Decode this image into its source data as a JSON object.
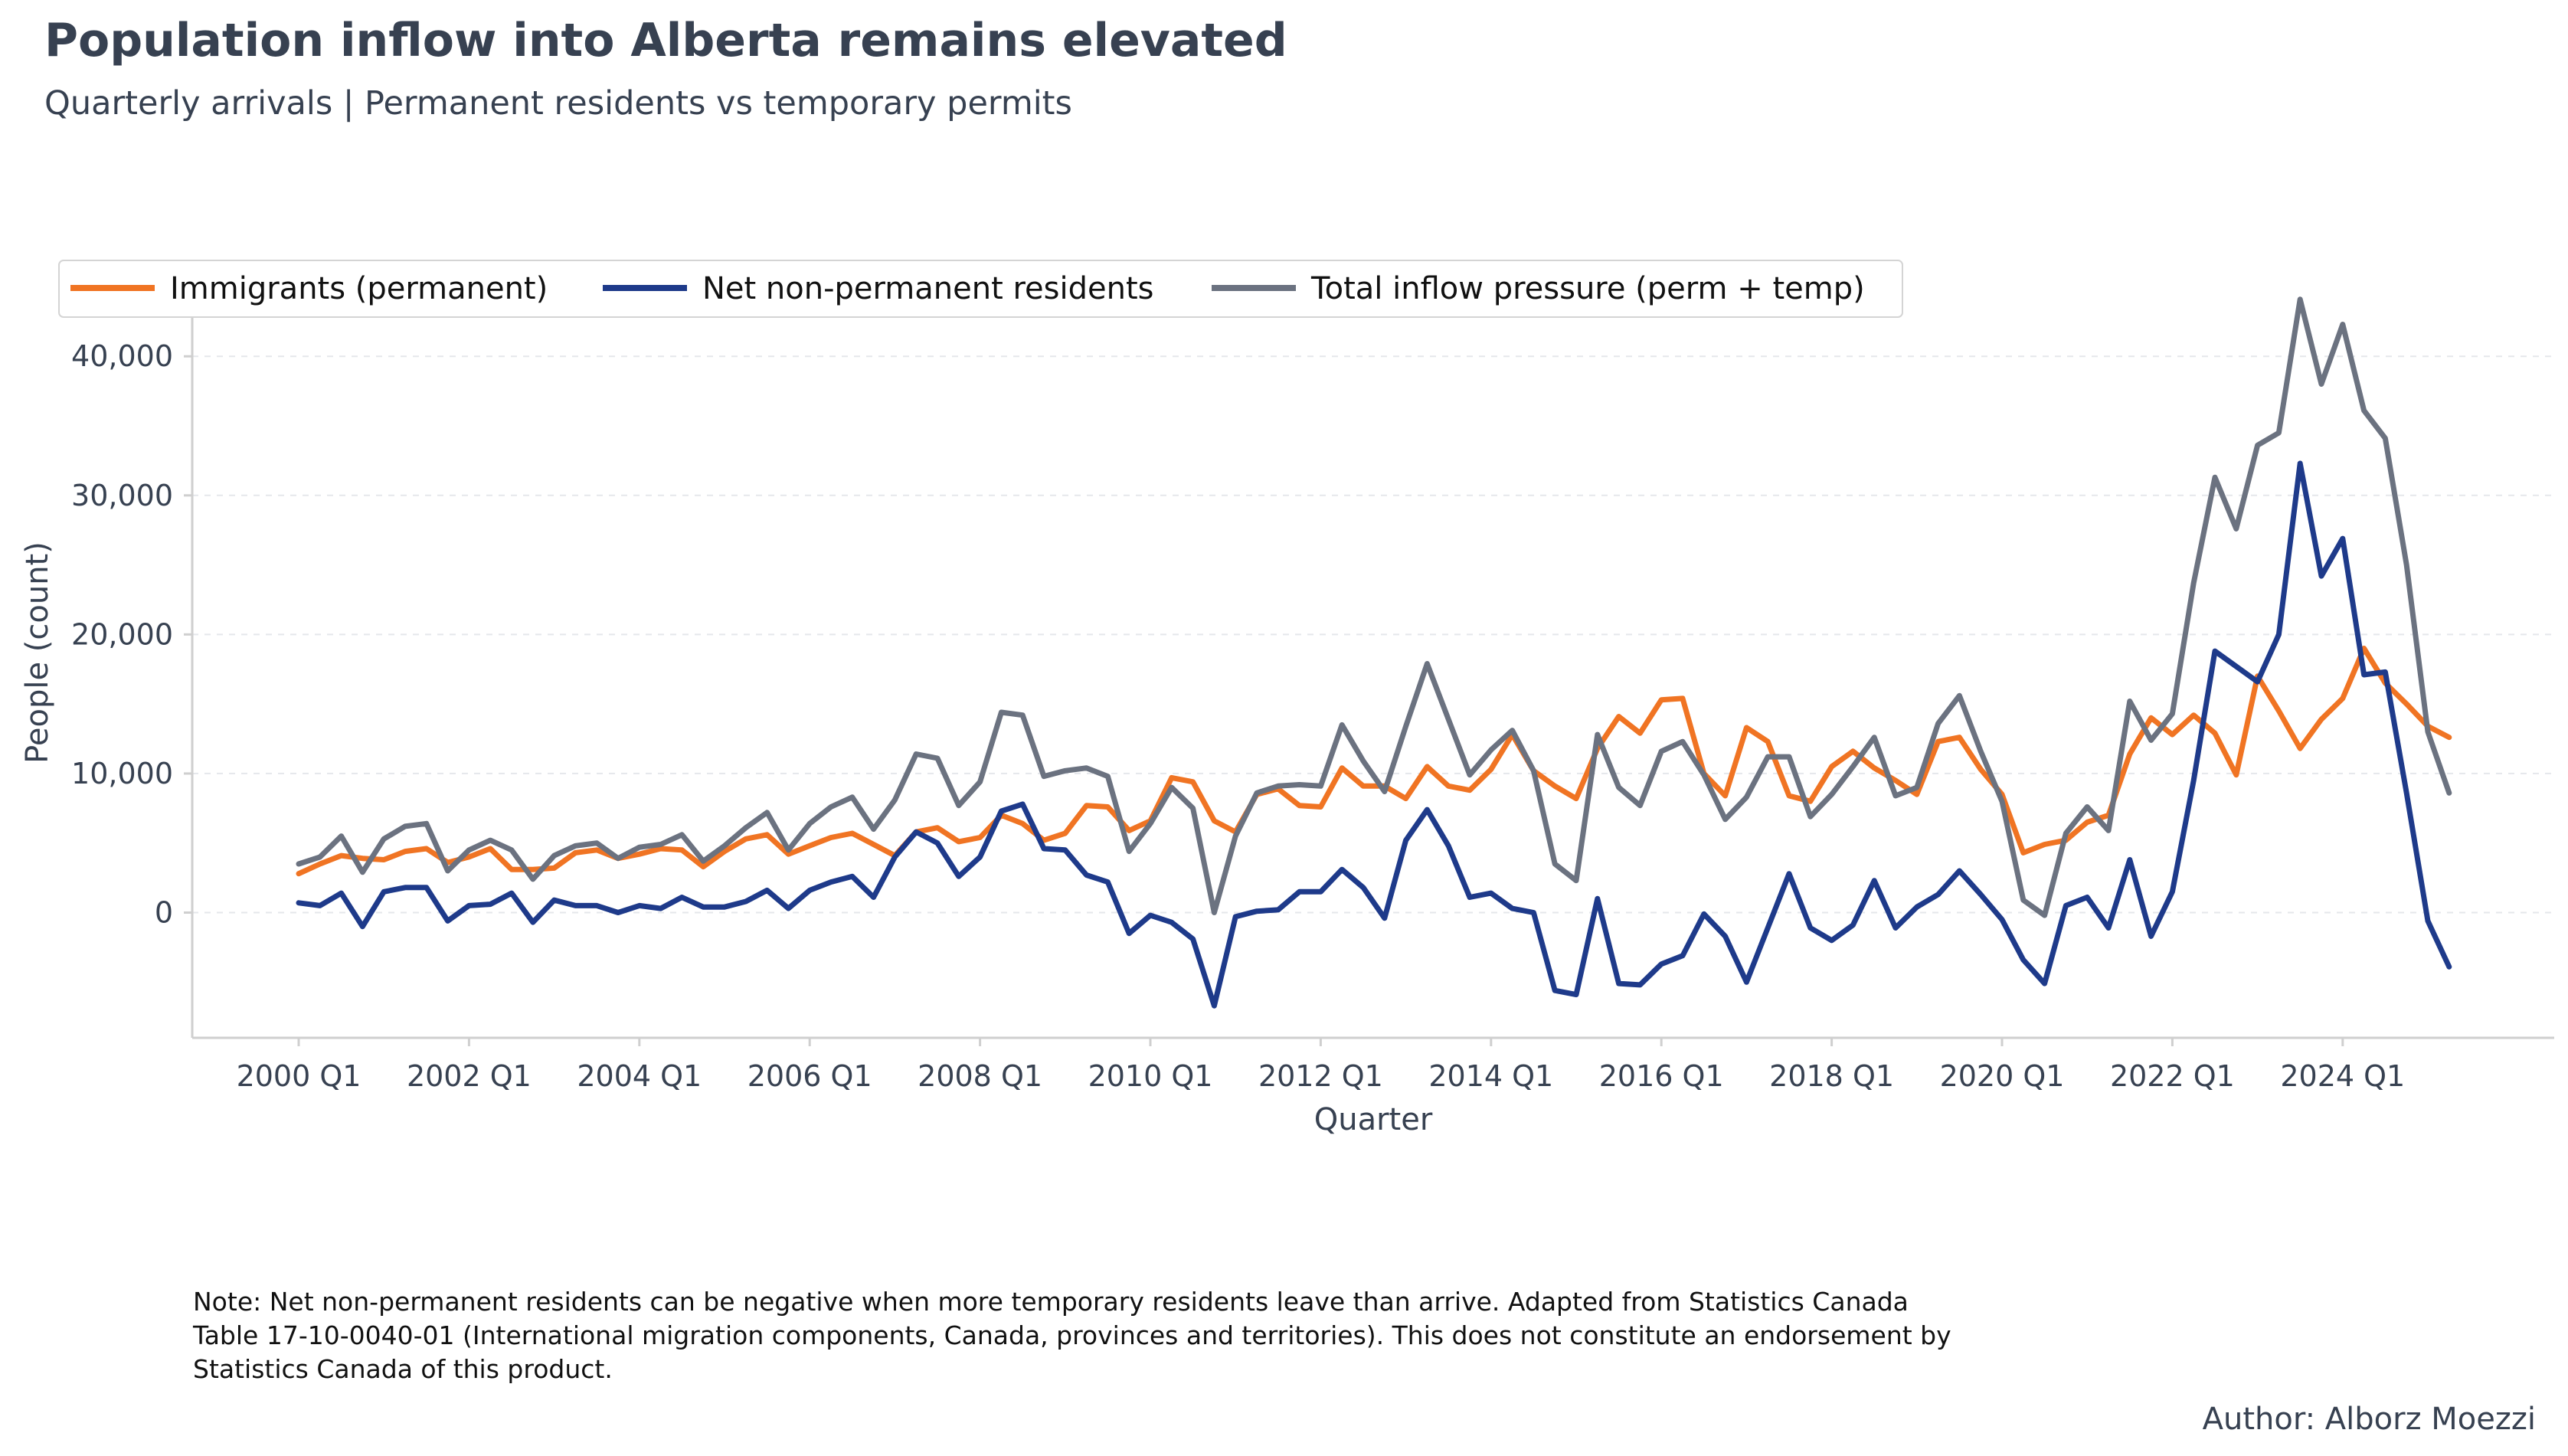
{
  "header": {
    "title": "Population inflow into Alberta remains elevated",
    "subtitle": "Quarterly arrivals | Permanent residents vs temporary permits"
  },
  "footer": {
    "note": "Note: Net non-permanent residents can be negative when more temporary residents leave than arrive. Adapted from Statistics Canada Table 17-10-0040-01 (International migration components, Canada, provinces and territories). This does not constitute an endorsement by Statistics Canada of this product.",
    "author": "Author: Alborz Moezzi"
  },
  "chart_data": {
    "type": "line",
    "xlabel": "Quarter",
    "ylabel": "People (count)",
    "ylim": [
      -9000,
      46000
    ],
    "y_ticks": [
      0,
      10000,
      20000,
      30000,
      40000
    ],
    "y_tick_labels": [
      "0",
      "10,000",
      "20,000",
      "30,000",
      "40,000"
    ],
    "x_tick_labels": [
      "2000 Q1",
      "2002 Q1",
      "2004 Q1",
      "2006 Q1",
      "2008 Q1",
      "2010 Q1",
      "2012 Q1",
      "2014 Q1",
      "2016 Q1",
      "2018 Q1",
      "2020 Q1",
      "2022 Q1",
      "2024 Q1"
    ],
    "x_start": "2000 Q1",
    "x_end": "2025 Q2",
    "grid": "y-dashed",
    "legend_position": "top-left",
    "series": [
      {
        "name": "Immigrants (permanent)",
        "color": "#F07423",
        "values": [
          2800,
          3500,
          4100,
          3900,
          3800,
          4400,
          4600,
          3600,
          4000,
          4600,
          3100,
          3100,
          3200,
          4300,
          4500,
          3900,
          4200,
          4600,
          4500,
          3300,
          4400,
          5300,
          5600,
          4200,
          4800,
          5400,
          5700,
          4900,
          4100,
          5800,
          6100,
          5100,
          5400,
          7000,
          6400,
          5200,
          5700,
          7700,
          7600,
          5900,
          6600,
          9700,
          9400,
          6600,
          5800,
          8500,
          8900,
          7700,
          7600,
          10400,
          9100,
          9100,
          8200,
          10500,
          9100,
          8800,
          10300,
          12800,
          10200,
          9100,
          8200,
          11800,
          14100,
          12900,
          15300,
          15400,
          10000,
          8400,
          13300,
          12300,
          8400,
          8000,
          10500,
          11600,
          10400,
          9500,
          8500,
          12300,
          12600,
          10300,
          8500,
          4300,
          4900,
          5200,
          6500,
          7000,
          11400,
          14000,
          12800,
          14200,
          12900,
          9900,
          17000,
          14500,
          11800,
          13900,
          15400,
          19000,
          16500,
          15000,
          13400,
          12600
        ]
      },
      {
        "name": "Net non-permanent residents",
        "color": "#1E3A8A",
        "values": [
          700,
          500,
          1400,
          -1000,
          1500,
          1800,
          1800,
          -600,
          500,
          600,
          1400,
          -700,
          900,
          500,
          500,
          0,
          500,
          300,
          1100,
          400,
          400,
          800,
          1600,
          300,
          1600,
          2200,
          2600,
          1100,
          4000,
          5800,
          5000,
          2600,
          4000,
          7300,
          7800,
          4600,
          4500,
          2700,
          2200,
          -1500,
          -200,
          -700,
          -1900,
          -6700,
          -300,
          100,
          200,
          1500,
          1500,
          3100,
          1800,
          -400,
          5200,
          7400,
          4800,
          1100,
          1400,
          300,
          0,
          -5600,
          -5900,
          1000,
          -5100,
          -5200,
          -3700,
          -3100,
          -100,
          -1700,
          -5000,
          -1100,
          2800,
          -1100,
          -2000,
          -900,
          2300,
          -1100,
          400,
          1300,
          3000,
          1300,
          -500,
          -3400,
          -5100,
          500,
          1100,
          -1100,
          3800,
          -1700,
          1500,
          9500,
          18800,
          17700,
          16600,
          20000,
          32300,
          24200,
          26900,
          17100,
          17300,
          8600,
          -600,
          -3900
        ]
      },
      {
        "name": "Total inflow pressure (perm + temp)",
        "color": "#6B7280",
        "values": [
          3500,
          4000,
          5500,
          2900,
          5300,
          6200,
          6400,
          3000,
          4500,
          5200,
          4500,
          2400,
          4100,
          4800,
          5000,
          3900,
          4700,
          4900,
          5600,
          3700,
          4800,
          6100,
          7200,
          4500,
          6400,
          7600,
          8300,
          6000,
          8100,
          11400,
          11100,
          7700,
          9400,
          14400,
          14200,
          9800,
          10200,
          10400,
          9800,
          4400,
          6400,
          9000,
          7500,
          0,
          5500,
          8600,
          9100,
          9200,
          9100,
          13500,
          10900,
          8700,
          13400,
          17900,
          13900,
          9900,
          11700,
          13100,
          10200,
          3500,
          2300,
          12800,
          9000,
          7700,
          11600,
          12300,
          9900,
          6700,
          8300,
          11200,
          11200,
          6900,
          8500,
          10500,
          12600,
          8400,
          9000,
          13600,
          15600,
          11600,
          8000,
          900,
          -200,
          5700,
          7600,
          5900,
          15200,
          12400,
          14300,
          23700,
          31300,
          27600,
          33600,
          34500,
          44100,
          38000,
          42300,
          36100,
          34100,
          25000,
          13000,
          8600
        ]
      }
    ]
  }
}
